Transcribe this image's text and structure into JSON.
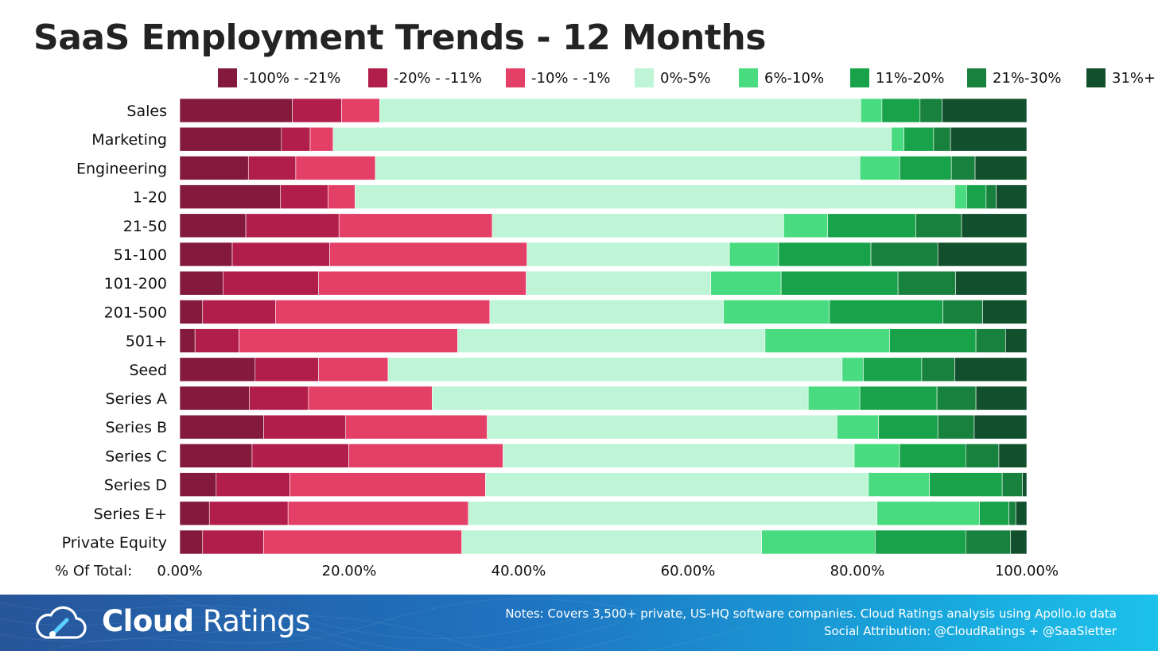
{
  "title": "SaaS Employment Trends - 12 Months",
  "chart_data": {
    "type": "bar",
    "orientation": "horizontal",
    "stacked": true,
    "normalized": true,
    "title": "SaaS Employment Trends - 12 Months",
    "xlabel": "% Of Total:",
    "xlim": [
      0,
      100
    ],
    "xticks": [
      "0.00%",
      "20.00%",
      "40.00%",
      "60.00%",
      "80.00%",
      "100.00%"
    ],
    "grid": false,
    "legend_position": "top",
    "categories": [
      "Sales",
      "Marketing",
      "Engineering",
      "1-20",
      "21-50",
      "51-100",
      "101-200",
      "201-500",
      "501+",
      "Seed",
      "Series A",
      "Series B",
      "Series C",
      "Series D",
      "Series E+",
      "Private Equity"
    ],
    "series": [
      {
        "name": "-100% - -21%",
        "color": "#831a3d",
        "values": [
          13.3,
          12.0,
          8.1,
          11.9,
          7.8,
          6.2,
          5.1,
          2.7,
          1.8,
          8.9,
          8.2,
          9.9,
          8.3,
          4.3,
          3.5,
          2.7
        ]
      },
      {
        "name": "-20% - -11%",
        "color": "#b21e4b",
        "values": [
          5.8,
          3.4,
          5.6,
          5.6,
          11.0,
          11.5,
          11.3,
          8.6,
          5.2,
          7.5,
          7.0,
          9.7,
          11.1,
          8.7,
          9.3,
          7.2
        ]
      },
      {
        "name": "-10% - -1%",
        "color": "#e43f67",
        "values": [
          4.5,
          2.7,
          9.4,
          3.2,
          18.1,
          23.3,
          24.5,
          25.3,
          25.8,
          8.2,
          14.6,
          16.7,
          17.7,
          23.1,
          21.3,
          23.4
        ]
      },
      {
        "name": "0%-5%",
        "color": "#bdf5d6",
        "values": [
          56.8,
          65.9,
          57.2,
          70.8,
          34.4,
          23.9,
          21.8,
          27.6,
          36.3,
          53.6,
          44.4,
          41.3,
          40.3,
          45.2,
          48.3,
          35.4
        ]
      },
      {
        "name": "6%-10%",
        "color": "#48db7f",
        "values": [
          2.5,
          1.5,
          4.7,
          1.4,
          5.2,
          5.8,
          8.3,
          12.5,
          14.7,
          2.5,
          6.1,
          4.9,
          5.2,
          7.2,
          12.1,
          13.4
        ]
      },
      {
        "name": "11%-20%",
        "color": "#18a34a",
        "values": [
          4.5,
          3.5,
          6.1,
          2.3,
          10.4,
          10.9,
          13.8,
          13.4,
          10.2,
          6.9,
          9.1,
          7.0,
          7.6,
          8.6,
          3.5,
          10.7
        ]
      },
      {
        "name": "21%-30%",
        "color": "#17813d",
        "values": [
          2.6,
          2.0,
          2.8,
          1.2,
          5.4,
          7.9,
          6.8,
          4.7,
          3.5,
          3.9,
          4.6,
          4.3,
          3.8,
          2.4,
          0.8,
          5.3
        ]
      },
      {
        "name": "31%+",
        "color": "#124f2c",
        "values": [
          10.0,
          9.0,
          6.1,
          3.6,
          7.7,
          10.5,
          8.4,
          5.2,
          2.5,
          8.5,
          6.0,
          6.2,
          3.2,
          0.5,
          1.3,
          1.9
        ]
      }
    ]
  },
  "footer": {
    "brand_bold": "Cloud",
    "brand_light": "Ratings",
    "notes_line1": "Notes: Covers 3,500+ private, US-HQ software companies. Cloud Ratings analysis using Apollo.io data",
    "notes_line2": "Social Attribution: @CloudRatings + @SaaSletter",
    "logo_icon": "cloud-gauge-icon",
    "pattern_color": "#ffffff"
  }
}
